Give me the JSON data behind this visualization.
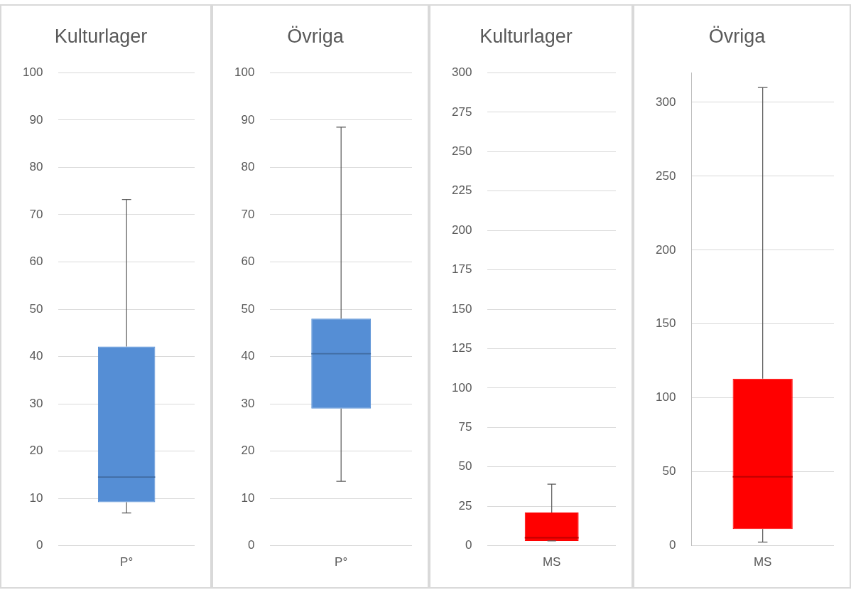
{
  "chart_data": [
    {
      "type": "box",
      "title": "Kulturlager",
      "categories": [
        "P°"
      ],
      "color": "#558ed5",
      "ylim": [
        0,
        100
      ],
      "yticks": [
        0,
        10,
        20,
        30,
        40,
        50,
        60,
        70,
        80,
        90,
        100
      ],
      "grid": "y",
      "boxes": [
        {
          "low": 6.9,
          "q1": 9.2,
          "median": 14.5,
          "q3": 42.1,
          "high": 73.2
        }
      ]
    },
    {
      "type": "box",
      "title": "Övriga",
      "categories": [
        "P°"
      ],
      "color": "#558ed5",
      "ylim": [
        0,
        100
      ],
      "yticks": [
        0,
        10,
        20,
        30,
        40,
        50,
        60,
        70,
        80,
        90,
        100
      ],
      "grid": "y",
      "boxes": [
        {
          "low": 13.6,
          "q1": 29.0,
          "median": 40.6,
          "q3": 48.0,
          "high": 88.5
        }
      ]
    },
    {
      "type": "box",
      "title": "Kulturlager",
      "categories": [
        "MS"
      ],
      "color": "#ff0000",
      "ylim": [
        0,
        300
      ],
      "yticks": [
        0,
        25,
        50,
        75,
        100,
        125,
        150,
        175,
        200,
        225,
        250,
        275,
        300
      ],
      "grid": "y",
      "boxes": [
        {
          "low": 3,
          "q1": 3,
          "median": 5,
          "q3": 21,
          "high": 39
        }
      ]
    },
    {
      "type": "box",
      "title": "Övriga",
      "categories": [
        "MS"
      ],
      "color": "#ff0000",
      "ylim": [
        0,
        320
      ],
      "yticks": [
        0,
        50,
        100,
        150,
        200,
        250,
        300
      ],
      "grid": "y",
      "boxes": [
        {
          "low": 2.4,
          "q1": 11.2,
          "median": 46.6,
          "q3": 113,
          "high": 310
        }
      ]
    }
  ]
}
